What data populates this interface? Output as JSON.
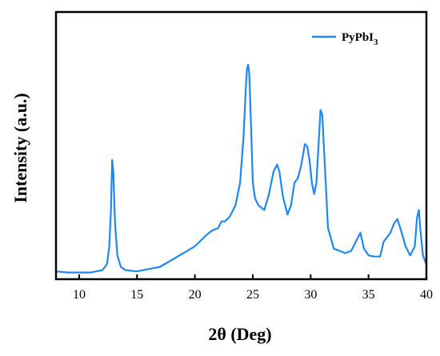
{
  "chart_data": {
    "type": "line",
    "title": "",
    "xlabel": "2θ (Deg)",
    "ylabel": "Intensity (a.u.)",
    "xlim": [
      8,
      40
    ],
    "ylim": [
      0,
      100
    ],
    "x_ticks": [
      10,
      15,
      20,
      25,
      30,
      35,
      40
    ],
    "y_ticks_visible": false,
    "grid": false,
    "legend": {
      "placement": "top-right",
      "entries": [
        {
          "label_main": "PyPbI",
          "label_sub": "3"
        }
      ]
    },
    "series": [
      {
        "name": "PyPbI3",
        "color": "#1e88f0",
        "x": [
          8.0,
          9.0,
          10.0,
          11.0,
          12.0,
          12.4,
          12.6,
          12.75,
          12.85,
          12.95,
          13.1,
          13.3,
          13.6,
          14.0,
          15.0,
          16.0,
          17.0,
          18.0,
          19.0,
          20.0,
          21.0,
          21.5,
          22.0,
          22.3,
          22.6,
          23.0,
          23.5,
          23.9,
          24.2,
          24.4,
          24.5,
          24.6,
          24.7,
          24.85,
          25.0,
          25.2,
          25.5,
          26.0,
          26.4,
          26.8,
          27.1,
          27.3,
          27.6,
          28.0,
          28.3,
          28.6,
          28.9,
          29.2,
          29.5,
          29.7,
          29.9,
          30.1,
          30.3,
          30.5,
          30.7,
          30.85,
          31.0,
          31.2,
          31.5,
          32.0,
          32.5,
          33.0,
          33.5,
          34.0,
          34.3,
          34.6,
          35.0,
          35.5,
          36.0,
          36.3,
          36.6,
          36.9,
          37.2,
          37.5,
          37.8,
          38.2,
          38.6,
          39.0,
          39.2,
          39.35,
          39.5,
          39.7,
          40.0
        ],
        "y": [
          1.0,
          0.5,
          0.5,
          0.5,
          1.5,
          4.0,
          12.0,
          28.0,
          50.0,
          45.0,
          22.0,
          8.0,
          3.0,
          1.5,
          1.0,
          2.0,
          3.0,
          6.0,
          9.0,
          12.0,
          17.0,
          19.0,
          20.0,
          23.0,
          23.0,
          25.0,
          30.0,
          40.0,
          60.0,
          82.0,
          90.0,
          92.0,
          88.0,
          65.0,
          40.0,
          33.0,
          30.0,
          28.0,
          35.0,
          45.0,
          48.0,
          45.0,
          34.0,
          26.0,
          30.0,
          40.0,
          42.0,
          48.0,
          57.0,
          56.0,
          50.0,
          40.0,
          35.0,
          40.0,
          58.0,
          72.0,
          70.0,
          50.0,
          20.0,
          11.0,
          10.0,
          9.0,
          10.0,
          15.0,
          18.0,
          11.0,
          8.0,
          7.5,
          7.5,
          14.0,
          16.0,
          18.0,
          22.0,
          24.0,
          19.0,
          12.0,
          8.0,
          12.0,
          25.0,
          28.0,
          18.0,
          8.0,
          4.0
        ]
      }
    ]
  }
}
